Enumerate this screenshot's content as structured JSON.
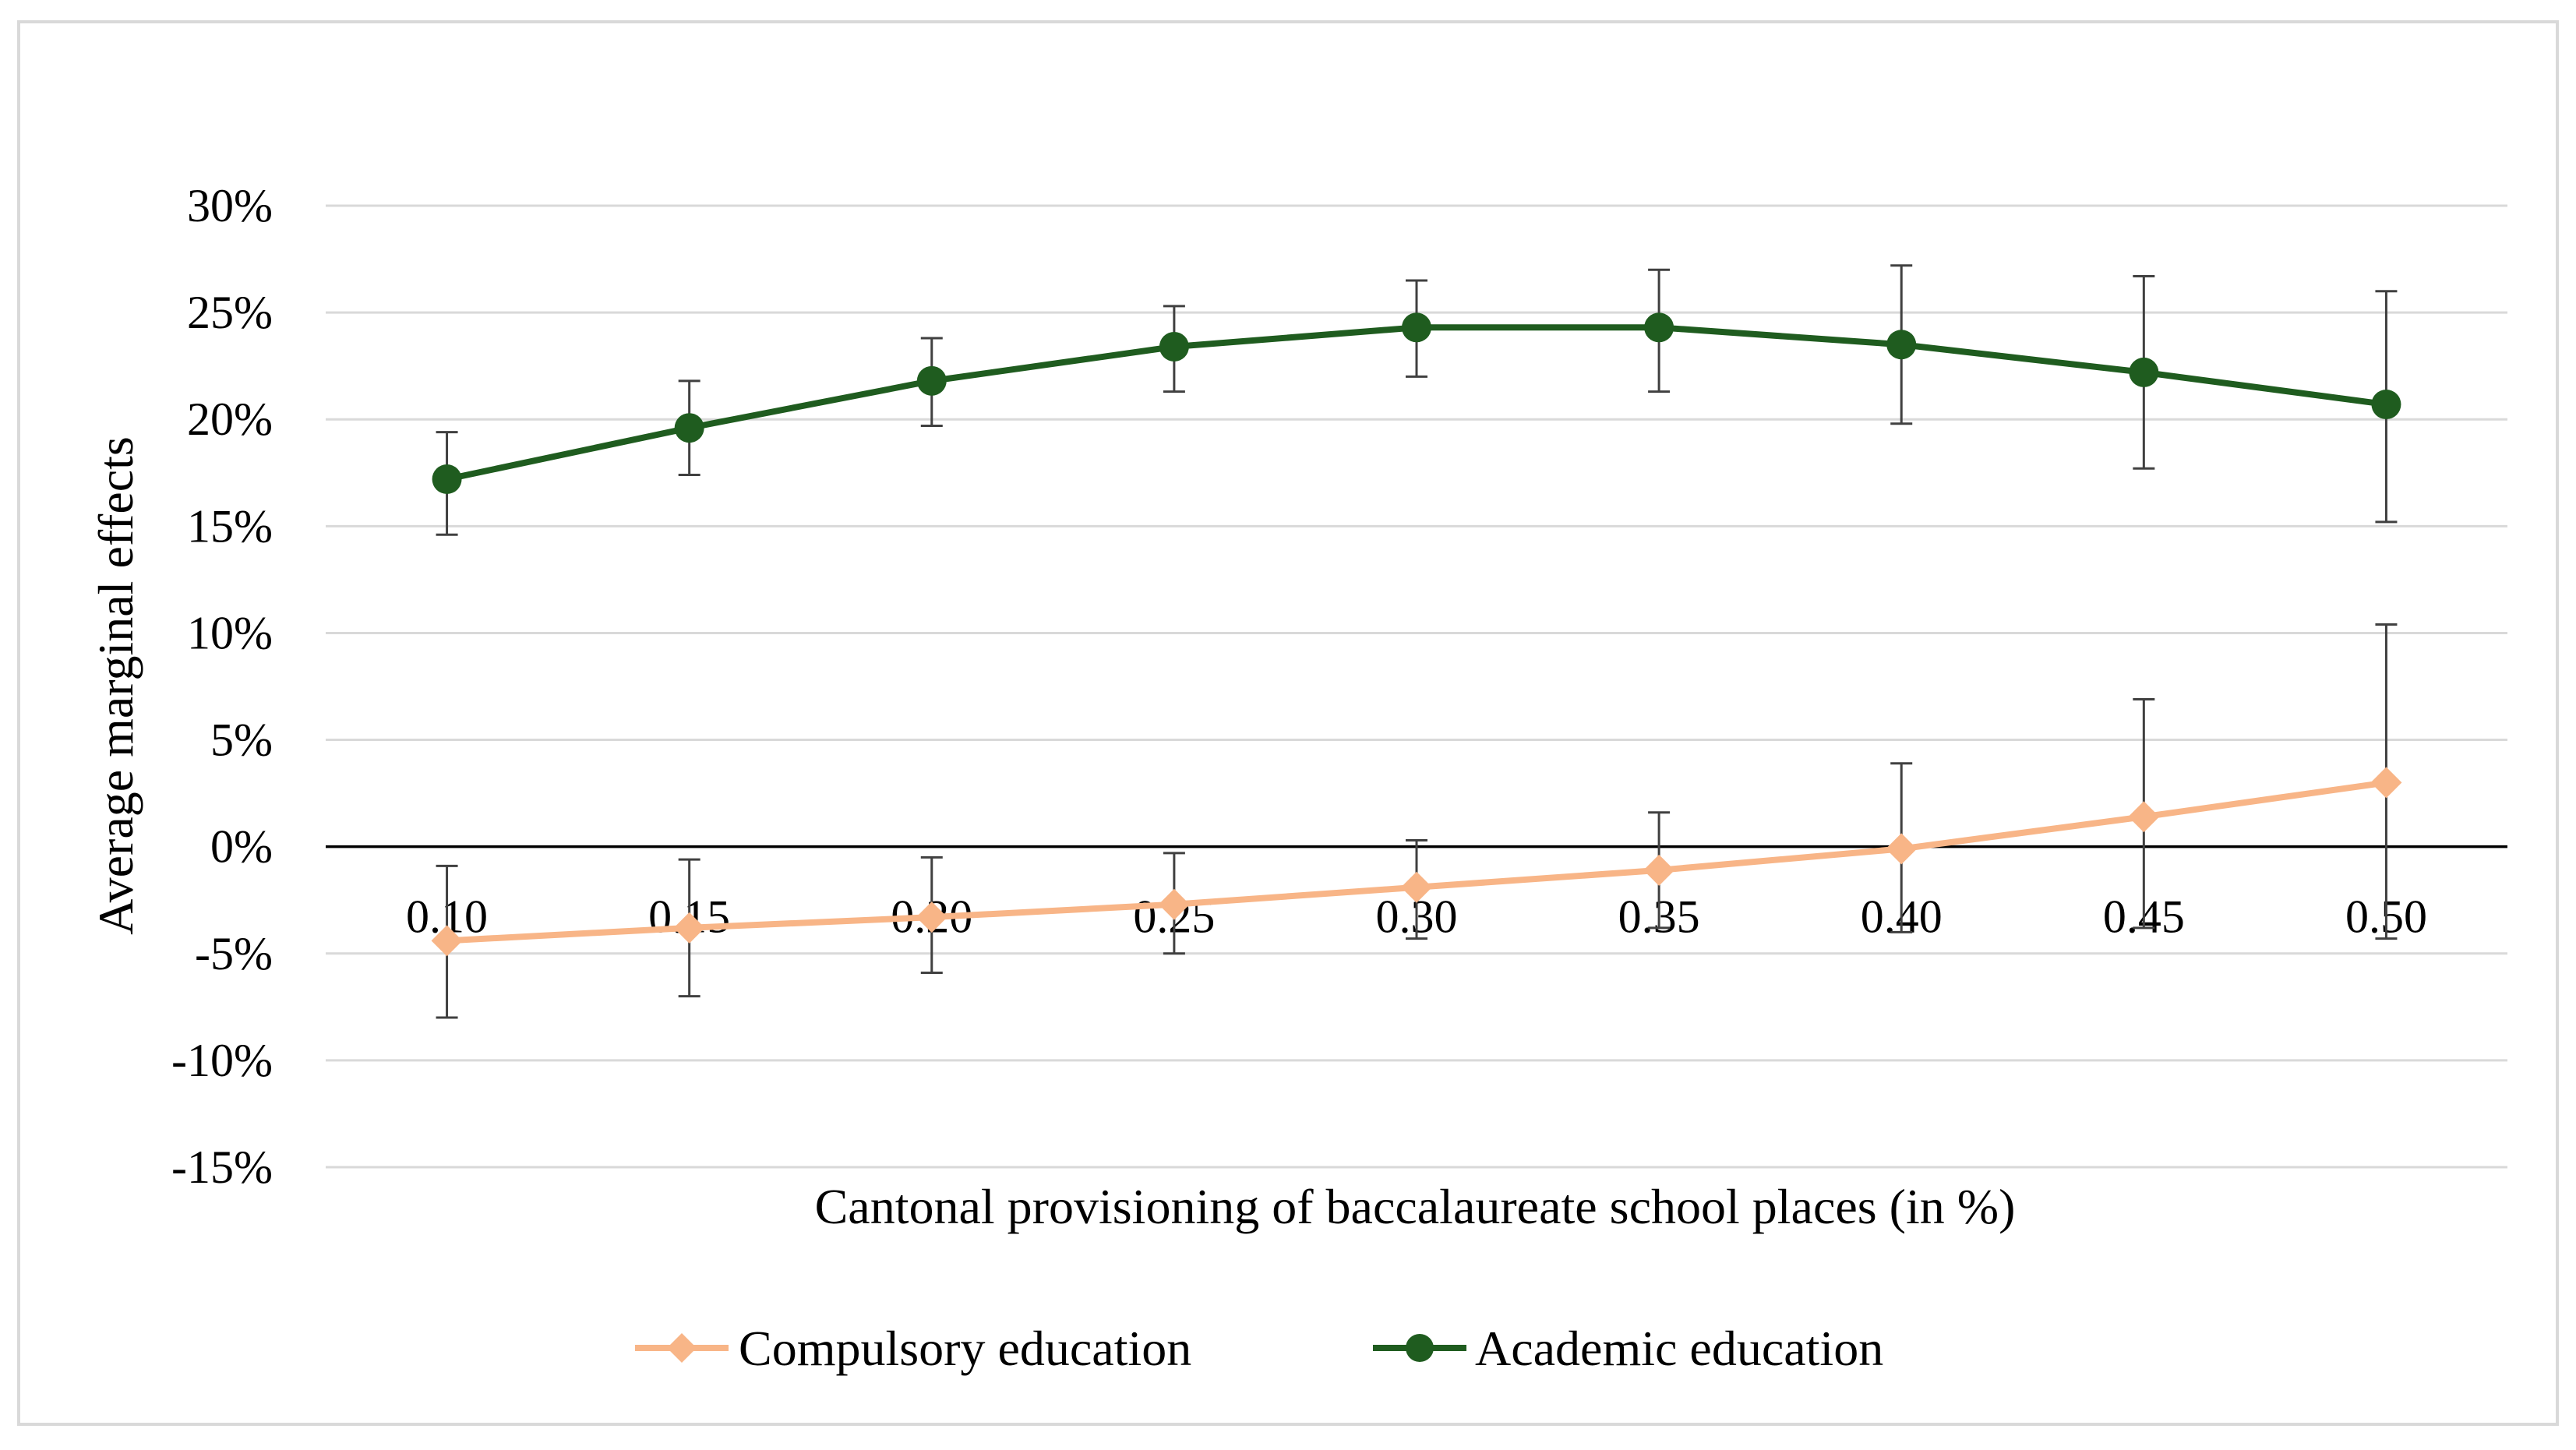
{
  "chart_data": {
    "type": "line",
    "title": "",
    "xlabel": "Cantonal provisioning of baccalaureate school places (in %)",
    "ylabel": "Average marginal effects",
    "categories": [
      "0.10",
      "0.15",
      "0.20",
      "0.25",
      "0.30",
      "0.35",
      "0.40",
      "0.45",
      "0.50"
    ],
    "y_ticks": [
      30,
      25,
      20,
      15,
      10,
      5,
      0,
      -5,
      -10,
      -15
    ],
    "y_tick_labels": [
      "30%",
      "25%",
      "20%",
      "15%",
      "10%",
      "5%",
      "0%",
      "-5%",
      "-10%",
      "-15%"
    ],
    "ylim": [
      -15,
      30
    ],
    "grid": true,
    "legend_position": "bottom",
    "series": [
      {
        "name": "Compulsory education",
        "color": "#F8B587",
        "marker": "diamond",
        "values": [
          -4.4,
          -3.8,
          -3.3,
          -2.7,
          -1.9,
          -1.1,
          -0.1,
          1.4,
          3.0
        ],
        "error_low": [
          -8.0,
          -7.0,
          -5.9,
          -5.0,
          -4.3,
          -3.8,
          -4.0,
          -3.8,
          -4.3
        ],
        "error_high": [
          -0.9,
          -0.6,
          -0.5,
          -0.3,
          0.3,
          1.6,
          3.9,
          6.9,
          10.4
        ]
      },
      {
        "name": "Academic education",
        "color": "#1F5C1F",
        "marker": "circle",
        "values": [
          17.2,
          19.6,
          21.8,
          23.4,
          24.3,
          24.3,
          23.5,
          22.2,
          20.7
        ],
        "error_low": [
          14.6,
          17.4,
          19.7,
          21.3,
          22.0,
          21.3,
          19.8,
          17.7,
          15.2
        ],
        "error_high": [
          19.4,
          21.8,
          23.8,
          25.3,
          26.5,
          27.0,
          27.2,
          26.7,
          26.0
        ]
      }
    ]
  }
}
